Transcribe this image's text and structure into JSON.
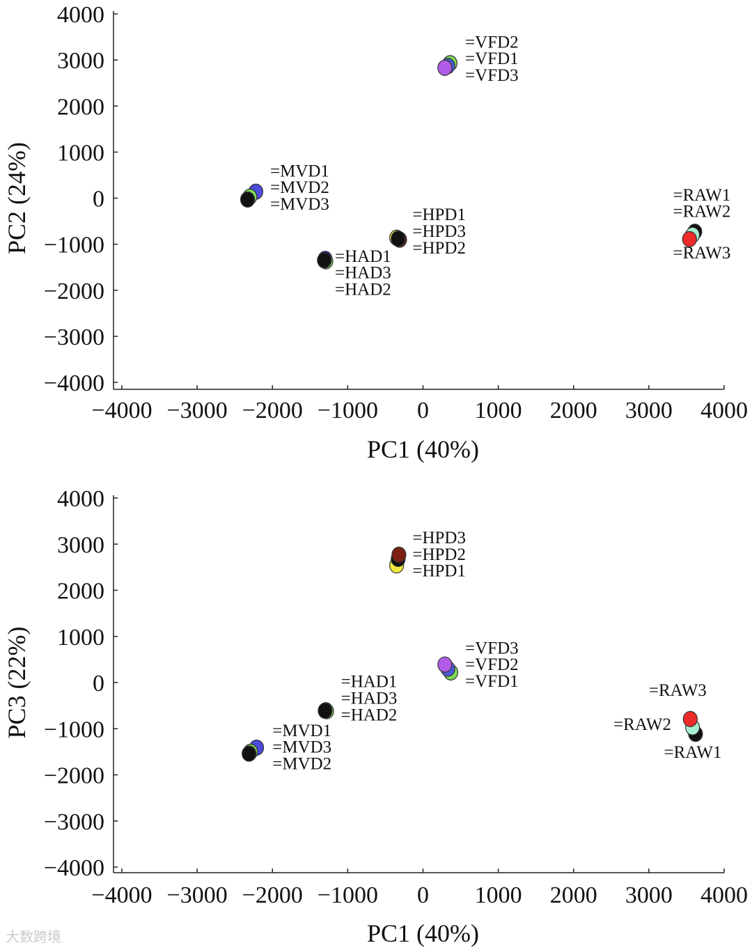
{
  "watermark": "大数跨境",
  "chart_data": [
    {
      "type": "scatter",
      "title": "",
      "xlabel": "PC1 (40%)",
      "ylabel": "PC2 (24%)",
      "xlim": [
        -4000,
        4000
      ],
      "ylim": [
        -4000,
        4000
      ],
      "xticks": [
        -4000,
        -3000,
        -2000,
        -1000,
        0,
        1000,
        2000,
        3000,
        4000
      ],
      "yticks": [
        -4000,
        -3000,
        -2000,
        -1000,
        0,
        1000,
        2000,
        3000,
        4000
      ],
      "xtick_labels": [
        "−4000",
        "−3000",
        "−2000",
        "−1000",
        "0",
        "1000",
        "2000",
        "3000",
        "4000"
      ],
      "ytick_labels": [
        "−4000",
        "−3000",
        "−2000",
        "−1000",
        "0",
        "1000",
        "2000",
        "3000",
        "4000"
      ],
      "points": [
        {
          "name": "VFD2",
          "x": 360,
          "y": 2930,
          "color": "#7ed957"
        },
        {
          "name": "VFD1",
          "x": 330,
          "y": 2870,
          "color": "#4b5bd6"
        },
        {
          "name": "VFD3",
          "x": 290,
          "y": 2830,
          "color": "#b05ce8"
        },
        {
          "name": "MVD1",
          "x": -2220,
          "y": 140,
          "color": "#4b4bdc"
        },
        {
          "name": "MVD2",
          "x": -2300,
          "y": 30,
          "color": "#7ed957"
        },
        {
          "name": "MVD3",
          "x": -2330,
          "y": -30,
          "color": "#111111"
        },
        {
          "name": "HPD1",
          "x": -350,
          "y": -860,
          "color": "#f0ea3c"
        },
        {
          "name": "HPD3",
          "x": -310,
          "y": -900,
          "color": "#7a1f12"
        },
        {
          "name": "HPD2",
          "x": -330,
          "y": -880,
          "color": "#111111"
        },
        {
          "name": "HAD1",
          "x": -1300,
          "y": -1320,
          "color": "#1515c8"
        },
        {
          "name": "HAD3",
          "x": -1290,
          "y": -1370,
          "color": "#7ed957"
        },
        {
          "name": "HAD2",
          "x": -1310,
          "y": -1350,
          "color": "#111111"
        },
        {
          "name": "RAW1",
          "x": 3610,
          "y": -730,
          "color": "#111111"
        },
        {
          "name": "RAW2",
          "x": 3580,
          "y": -800,
          "color": "#a8efd0"
        },
        {
          "name": "RAW3",
          "x": 3540,
          "y": -890,
          "color": "#ee2b2b"
        }
      ],
      "labels": [
        {
          "text": "=VFD2",
          "x": 560,
          "y": 3270
        },
        {
          "text": "=VFD1",
          "x": 560,
          "y": 2910
        },
        {
          "text": "=VFD3",
          "x": 560,
          "y": 2550
        },
        {
          "text": "=MVD1",
          "x": -2030,
          "y": 470
        },
        {
          "text": "=MVD2",
          "x": -2030,
          "y": 110
        },
        {
          "text": "=MVD3",
          "x": -2030,
          "y": -250
        },
        {
          "text": "=HPD1",
          "x": -140,
          "y": -480
        },
        {
          "text": "=HPD3",
          "x": -140,
          "y": -840
        },
        {
          "text": "=HPD2",
          "x": -140,
          "y": -1200
        },
        {
          "text": "=HAD1",
          "x": -1170,
          "y": -1380
        },
        {
          "text": "=HAD3",
          "x": -1170,
          "y": -1740
        },
        {
          "text": "=HAD2",
          "x": -1170,
          "y": -2100
        },
        {
          "text": "=RAW1",
          "x": 3320,
          "y": -50
        },
        {
          "text": "=RAW2",
          "x": 3320,
          "y": -410
        },
        {
          "text": "=RAW3",
          "x": 3320,
          "y": -1310
        }
      ]
    },
    {
      "type": "scatter",
      "title": "",
      "xlabel": "PC1 (40%)",
      "ylabel": "PC3 (22%)",
      "xlim": [
        -4000,
        4000
      ],
      "ylim": [
        -4000,
        4000
      ],
      "xticks": [
        -4000,
        -3000,
        -2000,
        -1000,
        0,
        1000,
        2000,
        3000,
        4000
      ],
      "yticks": [
        -4000,
        -3000,
        -2000,
        -1000,
        0,
        1000,
        2000,
        3000,
        4000
      ],
      "xtick_labels": [
        "−4000",
        "−3000",
        "−2000",
        "−1000",
        "0",
        "1000",
        "2000",
        "3000",
        "4000"
      ],
      "ytick_labels": [
        "−4000",
        "−3000",
        "−2000",
        "−1000",
        "0",
        "1000",
        "2000",
        "3000",
        "4000"
      ],
      "points": [
        {
          "name": "HPD1",
          "x": -350,
          "y": 2540,
          "color": "#f0ea3c"
        },
        {
          "name": "HPD2",
          "x": -330,
          "y": 2680,
          "color": "#111111"
        },
        {
          "name": "HPD3",
          "x": -320,
          "y": 2770,
          "color": "#7a1f12"
        },
        {
          "name": "VFD1",
          "x": 370,
          "y": 220,
          "color": "#7ed957"
        },
        {
          "name": "VFD2",
          "x": 330,
          "y": 300,
          "color": "#4b5bd6"
        },
        {
          "name": "VFD3",
          "x": 290,
          "y": 390,
          "color": "#b05ce8"
        },
        {
          "name": "HAD1",
          "x": -1290,
          "y": -600,
          "color": "#1515c8"
        },
        {
          "name": "HAD3",
          "x": -1280,
          "y": -620,
          "color": "#7ed957"
        },
        {
          "name": "HAD2",
          "x": -1300,
          "y": -610,
          "color": "#111111"
        },
        {
          "name": "MVD1",
          "x": -2210,
          "y": -1410,
          "color": "#4b4bdc"
        },
        {
          "name": "MVD2",
          "x": -2290,
          "y": -1500,
          "color": "#7ed957"
        },
        {
          "name": "MVD3",
          "x": -2310,
          "y": -1540,
          "color": "#111111"
        },
        {
          "name": "RAW1",
          "x": 3620,
          "y": -1110,
          "color": "#111111"
        },
        {
          "name": "RAW2",
          "x": 3580,
          "y": -970,
          "color": "#a8efd0"
        },
        {
          "name": "RAW3",
          "x": 3550,
          "y": -790,
          "color": "#ee2b2b"
        }
      ],
      "labels": [
        {
          "text": "=HPD3",
          "x": -140,
          "y": 3020
        },
        {
          "text": "=HPD2",
          "x": -140,
          "y": 2660
        },
        {
          "text": "=HPD1",
          "x": -140,
          "y": 2300
        },
        {
          "text": "=VFD3",
          "x": 560,
          "y": 630
        },
        {
          "text": "=VFD2",
          "x": 560,
          "y": 270
        },
        {
          "text": "=VFD1",
          "x": 560,
          "y": -90
        },
        {
          "text": "=HAD1",
          "x": -1090,
          "y": -100
        },
        {
          "text": "=HAD3",
          "x": -1090,
          "y": -460
        },
        {
          "text": "=HAD2",
          "x": -1090,
          "y": -820
        },
        {
          "text": "=MVD1",
          "x": -2000,
          "y": -1160
        },
        {
          "text": "=MVD3",
          "x": -2000,
          "y": -1520
        },
        {
          "text": "=MVD2",
          "x": -2000,
          "y": -1880
        },
        {
          "text": "=RAW3",
          "x": 3000,
          "y": -290
        },
        {
          "text": "=RAW2",
          "x": 2530,
          "y": -1030
        },
        {
          "text": "=RAW1",
          "x": 3200,
          "y": -1630
        }
      ]
    }
  ]
}
